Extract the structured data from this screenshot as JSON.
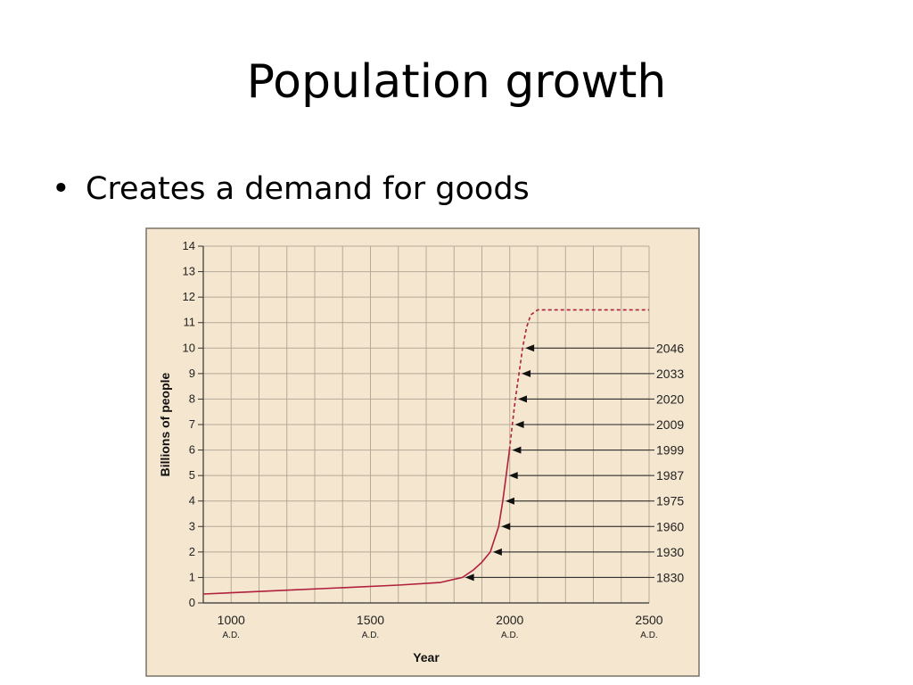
{
  "slide": {
    "title": "Population growth",
    "bullet": "Creates a demand for goods"
  },
  "colors": {
    "panel": "#f5e6cf",
    "grid": "#b5aa98",
    "curve": "#b0203c",
    "frame": "#7a7265"
  },
  "chart_data": {
    "type": "line",
    "title": "",
    "xlabel": "Year",
    "ylabel": "Billions of people",
    "xlim": [
      900,
      2500
    ],
    "ylim": [
      0,
      14
    ],
    "grid": true,
    "x_ticks": [
      {
        "value": 1000,
        "label": "1000",
        "sub": "A.D."
      },
      {
        "value": 1500,
        "label": "1500",
        "sub": "A.D."
      },
      {
        "value": 2000,
        "label": "2000",
        "sub": "A.D."
      },
      {
        "value": 2500,
        "label": "2500",
        "sub": "A.D."
      }
    ],
    "y_ticks": [
      0,
      1,
      2,
      3,
      4,
      5,
      6,
      7,
      8,
      9,
      10,
      11,
      12,
      13,
      14
    ],
    "series": [
      {
        "style": "solid",
        "points": [
          [
            900,
            0.35
          ],
          [
            1000,
            0.4
          ],
          [
            1200,
            0.5
          ],
          [
            1400,
            0.6
          ],
          [
            1600,
            0.7
          ],
          [
            1750,
            0.8
          ],
          [
            1830,
            1.0
          ],
          [
            1870,
            1.3
          ],
          [
            1900,
            1.6
          ],
          [
            1930,
            2.0
          ],
          [
            1960,
            3.0
          ],
          [
            1975,
            4.0
          ],
          [
            1987,
            5.0
          ],
          [
            1999,
            6.0
          ]
        ]
      },
      {
        "style": "dashed",
        "points": [
          [
            1999,
            6.0
          ],
          [
            2009,
            7.0
          ],
          [
            2020,
            8.0
          ],
          [
            2033,
            9.0
          ],
          [
            2046,
            10.0
          ],
          [
            2060,
            10.8
          ],
          [
            2075,
            11.3
          ],
          [
            2100,
            11.5
          ],
          [
            2500,
            11.5
          ]
        ]
      }
    ],
    "milestones": [
      {
        "year": "1830",
        "x": 1830,
        "value": 1
      },
      {
        "year": "1930",
        "x": 1930,
        "value": 2
      },
      {
        "year": "1960",
        "x": 1960,
        "value": 3
      },
      {
        "year": "1975",
        "x": 1975,
        "value": 4
      },
      {
        "year": "1987",
        "x": 1987,
        "value": 5
      },
      {
        "year": "1999",
        "x": 1999,
        "value": 6
      },
      {
        "year": "2009",
        "x": 2009,
        "value": 7
      },
      {
        "year": "2020",
        "x": 2020,
        "value": 8
      },
      {
        "year": "2033",
        "x": 2033,
        "value": 9
      },
      {
        "year": "2046",
        "x": 2046,
        "value": 10
      }
    ]
  }
}
